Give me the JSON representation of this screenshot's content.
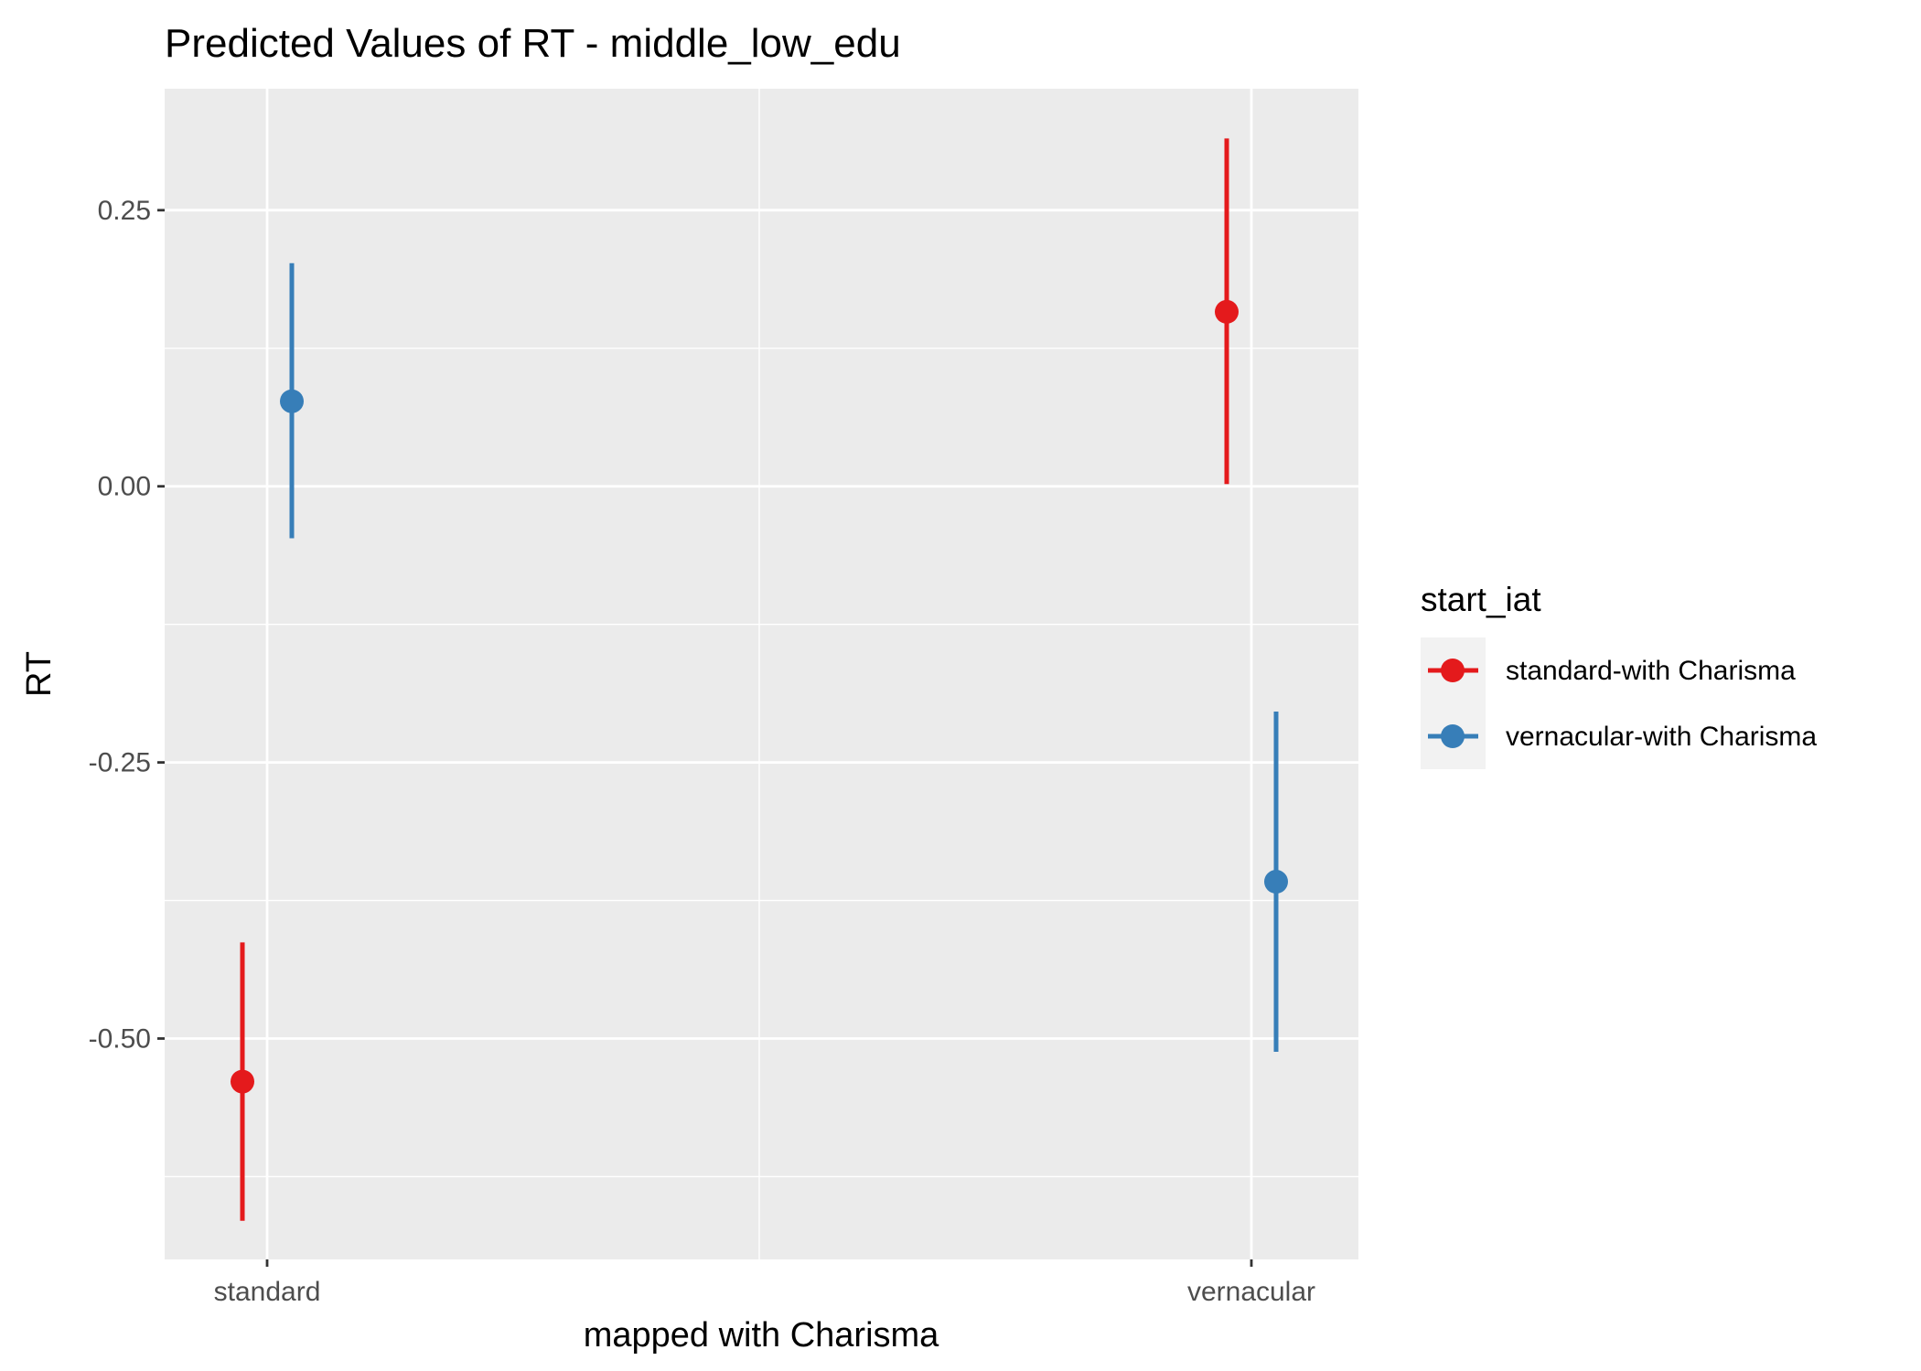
{
  "chart_data": {
    "type": "scatter",
    "title": "Predicted Values of RT - middle_low_edu",
    "xlabel": "mapped with Charisma",
    "ylabel": "RT",
    "categories": [
      "standard",
      "vernacular"
    ],
    "ylim": [
      -0.7,
      0.36
    ],
    "yticks": [
      -0.5,
      -0.25,
      0.0,
      0.25
    ],
    "ytick_labels": [
      "-0.50",
      "-0.25",
      "0.00",
      "0.25"
    ],
    "grid": true,
    "legend": {
      "title": "start_iat",
      "placement": "right"
    },
    "series": [
      {
        "name": "standard-with Charisma",
        "color": "#e41a1c",
        "values": [
          -0.539,
          0.158
        ],
        "lower": [
          -0.665,
          0.002
        ],
        "upper": [
          -0.413,
          0.315
        ]
      },
      {
        "name": "vernacular-with Charisma",
        "color": "#377eb8",
        "values": [
          0.077,
          -0.358
        ],
        "lower": [
          -0.047,
          -0.512
        ],
        "upper": [
          0.202,
          -0.204
        ]
      }
    ]
  }
}
